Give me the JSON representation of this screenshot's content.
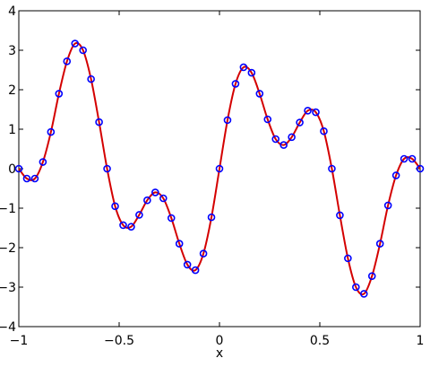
{
  "chart_data": {
    "type": "line",
    "xlabel": "x",
    "x": [
      -1,
      -0.96,
      -0.92,
      -0.88,
      -0.84,
      -0.8,
      -0.76,
      -0.72,
      -0.68,
      -0.64,
      -0.6,
      -0.56,
      -0.52,
      -0.48,
      -0.44,
      -0.4,
      -0.36,
      -0.32,
      -0.28,
      -0.24,
      -0.2,
      -0.16,
      -0.12,
      -0.08,
      -0.04,
      0,
      0.04,
      0.08,
      0.12,
      0.16,
      0.2,
      0.24,
      0.28,
      0.32,
      0.36,
      0.4,
      0.44,
      0.48,
      0.52,
      0.56,
      0.6,
      0.64,
      0.68,
      0.72,
      0.76,
      0.8,
      0.84,
      0.88,
      0.92,
      0.96,
      1
    ],
    "values": [
      0,
      -0.25,
      -0.25,
      0.17,
      0.93,
      1.9,
      2.72,
      3.17,
      3.0,
      2.27,
      1.18,
      0,
      -0.95,
      -1.43,
      -1.47,
      -1.17,
      -0.8,
      -0.6,
      -0.75,
      -1.25,
      -1.9,
      -2.43,
      -2.57,
      -2.15,
      -1.23,
      0,
      1.23,
      2.15,
      2.57,
      2.43,
      1.9,
      1.25,
      0.75,
      0.6,
      0.8,
      1.17,
      1.47,
      1.43,
      0.95,
      0,
      -1.18,
      -2.27,
      -3.0,
      -3.17,
      -2.72,
      -1.9,
      -0.93,
      -0.17,
      0.25,
      0.25,
      0
    ],
    "line_color": "#d40000",
    "marker_color": "#0000ff",
    "xlim": [
      -1,
      1
    ],
    "xticks": [
      {
        "value": -1,
        "label": "−1"
      },
      {
        "value": -0.5,
        "label": "−0.5"
      },
      0,
      0.5,
      1
    ],
    "ylim": [
      -4,
      4
    ],
    "yticks": [
      {
        "value": -4,
        "label": "−4"
      },
      {
        "value": -3,
        "label": "−3"
      },
      {
        "value": -2,
        "label": "−2"
      },
      {
        "value": -1,
        "label": "−1"
      },
      0,
      1,
      2,
      3,
      4
    ]
  }
}
